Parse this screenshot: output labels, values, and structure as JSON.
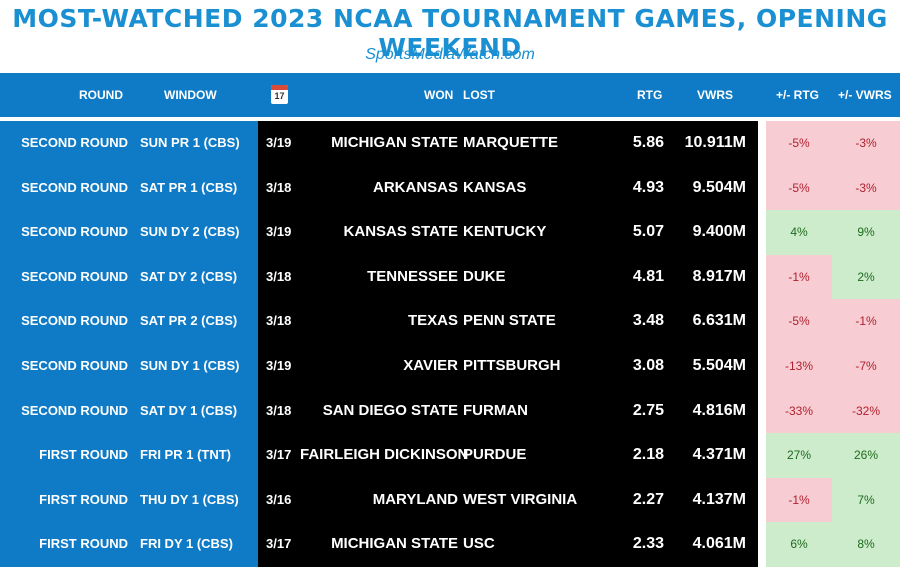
{
  "title": "MOST-WATCHED 2023 NCAA TOURNAMENT GAMES, OPENING WEEKEND",
  "subtitle": "SportsMediaWatch.com",
  "colors": {
    "brand_blue": "#0f7bc6",
    "negative_bg": "#f7cdd3",
    "positive_bg": "#cdeccb"
  },
  "header": {
    "round": "ROUND",
    "window": "WINDOW",
    "calendar_icon": "calendar-icon",
    "calendar_day": "17",
    "won": "WON",
    "lost": "LOST",
    "rtg": "RTG",
    "vwrs": "VWRS",
    "rtg_change": "+/- RTG",
    "vwrs_change": "+/- VWRS"
  },
  "chart_data": {
    "type": "table",
    "columns": [
      "ROUND",
      "WINDOW",
      "DATE",
      "WON",
      "LOST",
      "RTG",
      "VWRS",
      "+/- RTG",
      "+/- VWRS"
    ],
    "rows": [
      {
        "round": "SECOND ROUND",
        "window": "SUN PR 1 (CBS)",
        "date": "3/19",
        "won": "MICHIGAN STATE",
        "lost": "MARQUETTE",
        "rtg": "5.86",
        "vwrs": "10.911M",
        "rtg_change": "-5%",
        "vwrs_change": "-3%"
      },
      {
        "round": "SECOND ROUND",
        "window": "SAT PR 1 (CBS)",
        "date": "3/18",
        "won": "ARKANSAS",
        "lost": "KANSAS",
        "rtg": "4.93",
        "vwrs": "9.504M",
        "rtg_change": "-5%",
        "vwrs_change": "-3%"
      },
      {
        "round": "SECOND ROUND",
        "window": "SUN DY 2 (CBS)",
        "date": "3/19",
        "won": "KANSAS STATE",
        "lost": "KENTUCKY",
        "rtg": "5.07",
        "vwrs": "9.400M",
        "rtg_change": "4%",
        "vwrs_change": "9%"
      },
      {
        "round": "SECOND ROUND",
        "window": "SAT DY 2 (CBS)",
        "date": "3/18",
        "won": "TENNESSEE",
        "lost": "DUKE",
        "rtg": "4.81",
        "vwrs": "8.917M",
        "rtg_change": "-1%",
        "vwrs_change": "2%"
      },
      {
        "round": "SECOND ROUND",
        "window": "SAT PR 2 (CBS)",
        "date": "3/18",
        "won": "TEXAS",
        "lost": "PENN STATE",
        "rtg": "3.48",
        "vwrs": "6.631M",
        "rtg_change": "-5%",
        "vwrs_change": "-1%"
      },
      {
        "round": "SECOND ROUND",
        "window": "SUN DY 1 (CBS)",
        "date": "3/19",
        "won": "XAVIER",
        "lost": "PITTSBURGH",
        "rtg": "3.08",
        "vwrs": "5.504M",
        "rtg_change": "-13%",
        "vwrs_change": "-7%"
      },
      {
        "round": "SECOND ROUND",
        "window": "SAT DY 1 (CBS)",
        "date": "3/18",
        "won": "SAN DIEGO STATE",
        "lost": "FURMAN",
        "rtg": "2.75",
        "vwrs": "4.816M",
        "rtg_change": "-33%",
        "vwrs_change": "-32%"
      },
      {
        "round": "FIRST ROUND",
        "window": "FRI PR 1 (TNT)",
        "date": "3/17",
        "won": "FAIRLEIGH DICKINSON",
        "lost": "PURDUE",
        "rtg": "2.18",
        "vwrs": "4.371M",
        "rtg_change": "27%",
        "vwrs_change": "26%"
      },
      {
        "round": "FIRST ROUND",
        "window": "THU DY 1 (CBS)",
        "date": "3/16",
        "won": "MARYLAND",
        "lost": "WEST VIRGINIA",
        "rtg": "2.27",
        "vwrs": "4.137M",
        "rtg_change": "-1%",
        "vwrs_change": "7%"
      },
      {
        "round": "FIRST ROUND",
        "window": "FRI DY 1 (CBS)",
        "date": "3/17",
        "won": "MICHIGAN STATE",
        "lost": "USC",
        "rtg": "2.33",
        "vwrs": "4.061M",
        "rtg_change": "6%",
        "vwrs_change": "8%"
      }
    ]
  }
}
